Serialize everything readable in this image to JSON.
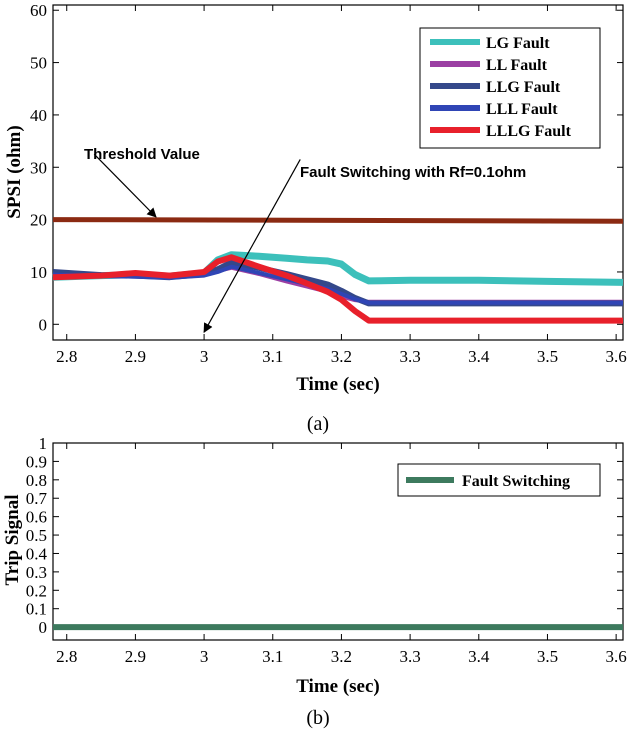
{
  "chart_data": [
    {
      "type": "line",
      "panel": "a",
      "caption": "(a)",
      "xlabel": "Time (sec)",
      "ylabel": "SPSI (ohm)",
      "xlim": [
        2.78,
        3.61
      ],
      "ylim": [
        -3,
        61
      ],
      "xticks": [
        2.8,
        2.9,
        3,
        3.1,
        3.2,
        3.3,
        3.4,
        3.5,
        3.6
      ],
      "xtick_labels": [
        "2.8",
        "2.9",
        "3",
        "3.1",
        "3.2",
        "3.3",
        "3.4",
        "3.5",
        "3.6"
      ],
      "yticks": [
        0,
        10,
        20,
        30,
        40,
        50,
        60
      ],
      "ytick_labels": [
        "0",
        "10",
        "20",
        "30",
        "40",
        "50",
        "60"
      ],
      "legend_position": "top-right",
      "series": [
        {
          "name": "Threshold",
          "color": "#8B2A12",
          "in_legend": false,
          "x": [
            2.78,
            3.61
          ],
          "y": [
            20,
            19.7
          ]
        },
        {
          "name": "LG Fault",
          "color": "#3CC0BB",
          "in_legend": true,
          "x": [
            2.78,
            2.85,
            2.9,
            2.95,
            3.0,
            3.02,
            3.04,
            3.08,
            3.12,
            3.15,
            3.18,
            3.2,
            3.22,
            3.24,
            3.3,
            3.4,
            3.5,
            3.61
          ],
          "y": [
            9,
            9.3,
            9.5,
            9.2,
            9.8,
            12.3,
            13.3,
            13,
            12.6,
            12.3,
            12.1,
            11.5,
            9.5,
            8.3,
            8.4,
            8.4,
            8.2,
            8.0
          ]
        },
        {
          "name": "LL Fault",
          "color": "#9B3FA3",
          "in_legend": true,
          "x": [
            2.78,
            2.85,
            2.9,
            2.95,
            3.0,
            3.02,
            3.04,
            3.08,
            3.12,
            3.15,
            3.18,
            3.2,
            3.22,
            3.24,
            3.3,
            3.4,
            3.5,
            3.61
          ],
          "y": [
            9,
            9.2,
            9.4,
            9.1,
            9.5,
            10.2,
            10.8,
            9.6,
            8.2,
            7.2,
            6.2,
            5.3,
            4.6,
            4.3,
            4.3,
            4.3,
            4.3,
            4.3
          ]
        },
        {
          "name": "LLG Fault",
          "color": "#34488A",
          "in_legend": true,
          "x": [
            2.78,
            2.85,
            2.9,
            2.95,
            3.0,
            3.02,
            3.04,
            3.08,
            3.12,
            3.15,
            3.18,
            3.2,
            3.22,
            3.24,
            3.3,
            3.4,
            3.5,
            3.61
          ],
          "y": [
            10,
            9.4,
            9.3,
            9.0,
            9.6,
            10.5,
            11.8,
            10.8,
            9.6,
            8.6,
            7.6,
            6.4,
            5.0,
            4.0,
            4.0,
            4.0,
            4.0,
            4.0
          ]
        },
        {
          "name": "LLL Fault",
          "color": "#2F45B5",
          "in_legend": true,
          "x": [
            2.78,
            2.85,
            2.9,
            2.95,
            3.0,
            3.02,
            3.04,
            3.08,
            3.12,
            3.15,
            3.18,
            3.2,
            3.22,
            3.24,
            3.3,
            3.4,
            3.5,
            3.61
          ],
          "y": [
            9.5,
            9.2,
            9.1,
            8.9,
            9.3,
            10.0,
            11.0,
            9.8,
            8.6,
            7.7,
            6.8,
            5.8,
            4.8,
            4.1,
            4.1,
            4.1,
            4.1,
            4.1
          ]
        },
        {
          "name": "LLLG Fault",
          "color": "#E8202B",
          "in_legend": true,
          "x": [
            2.78,
            2.85,
            2.9,
            2.95,
            3.0,
            3.02,
            3.04,
            3.08,
            3.12,
            3.15,
            3.18,
            3.2,
            3.22,
            3.24,
            3.3,
            3.4,
            3.5,
            3.61
          ],
          "y": [
            9,
            9.3,
            9.8,
            9.3,
            10.0,
            12.0,
            12.8,
            11.0,
            9.3,
            7.8,
            6.2,
            4.7,
            2.5,
            0.7,
            0.7,
            0.7,
            0.7,
            0.7
          ]
        }
      ],
      "annotations": [
        {
          "text": "Threshold Value",
          "from": [
            2.84,
            32.5
          ],
          "to": [
            2.93,
            20.5
          ]
        },
        {
          "text": "Fault Switching with Rf=0.1ohm",
          "from": [
            3.14,
            31.5
          ],
          "to": [
            3.0,
            -1.5
          ]
        }
      ]
    },
    {
      "type": "line",
      "panel": "b",
      "caption": "(b)",
      "xlabel": "Time (sec)",
      "ylabel": "Trip Signal",
      "xlim": [
        2.78,
        3.61
      ],
      "ylim": [
        -0.07,
        1.0
      ],
      "xticks": [
        2.8,
        2.9,
        3,
        3.1,
        3.2,
        3.3,
        3.4,
        3.5,
        3.6
      ],
      "xtick_labels": [
        "2.8",
        "2.9",
        "3",
        "3.1",
        "3.2",
        "3.3",
        "3.4",
        "3.5",
        "3.6"
      ],
      "yticks": [
        0,
        0.1,
        0.2,
        0.3,
        0.4,
        0.5,
        0.6,
        0.7,
        0.8,
        0.9,
        1
      ],
      "ytick_labels": [
        "0",
        "0.1",
        "0.2",
        "0.3",
        "0.4",
        "0.5",
        "0.6",
        "0.7",
        "0.8",
        "0.9",
        "1"
      ],
      "legend_position": "top-right",
      "series": [
        {
          "name": "Fault Switching",
          "color": "#3D7A5E",
          "in_legend": true,
          "x": [
            2.78,
            3.61
          ],
          "y": [
            0,
            0
          ]
        }
      ]
    }
  ]
}
